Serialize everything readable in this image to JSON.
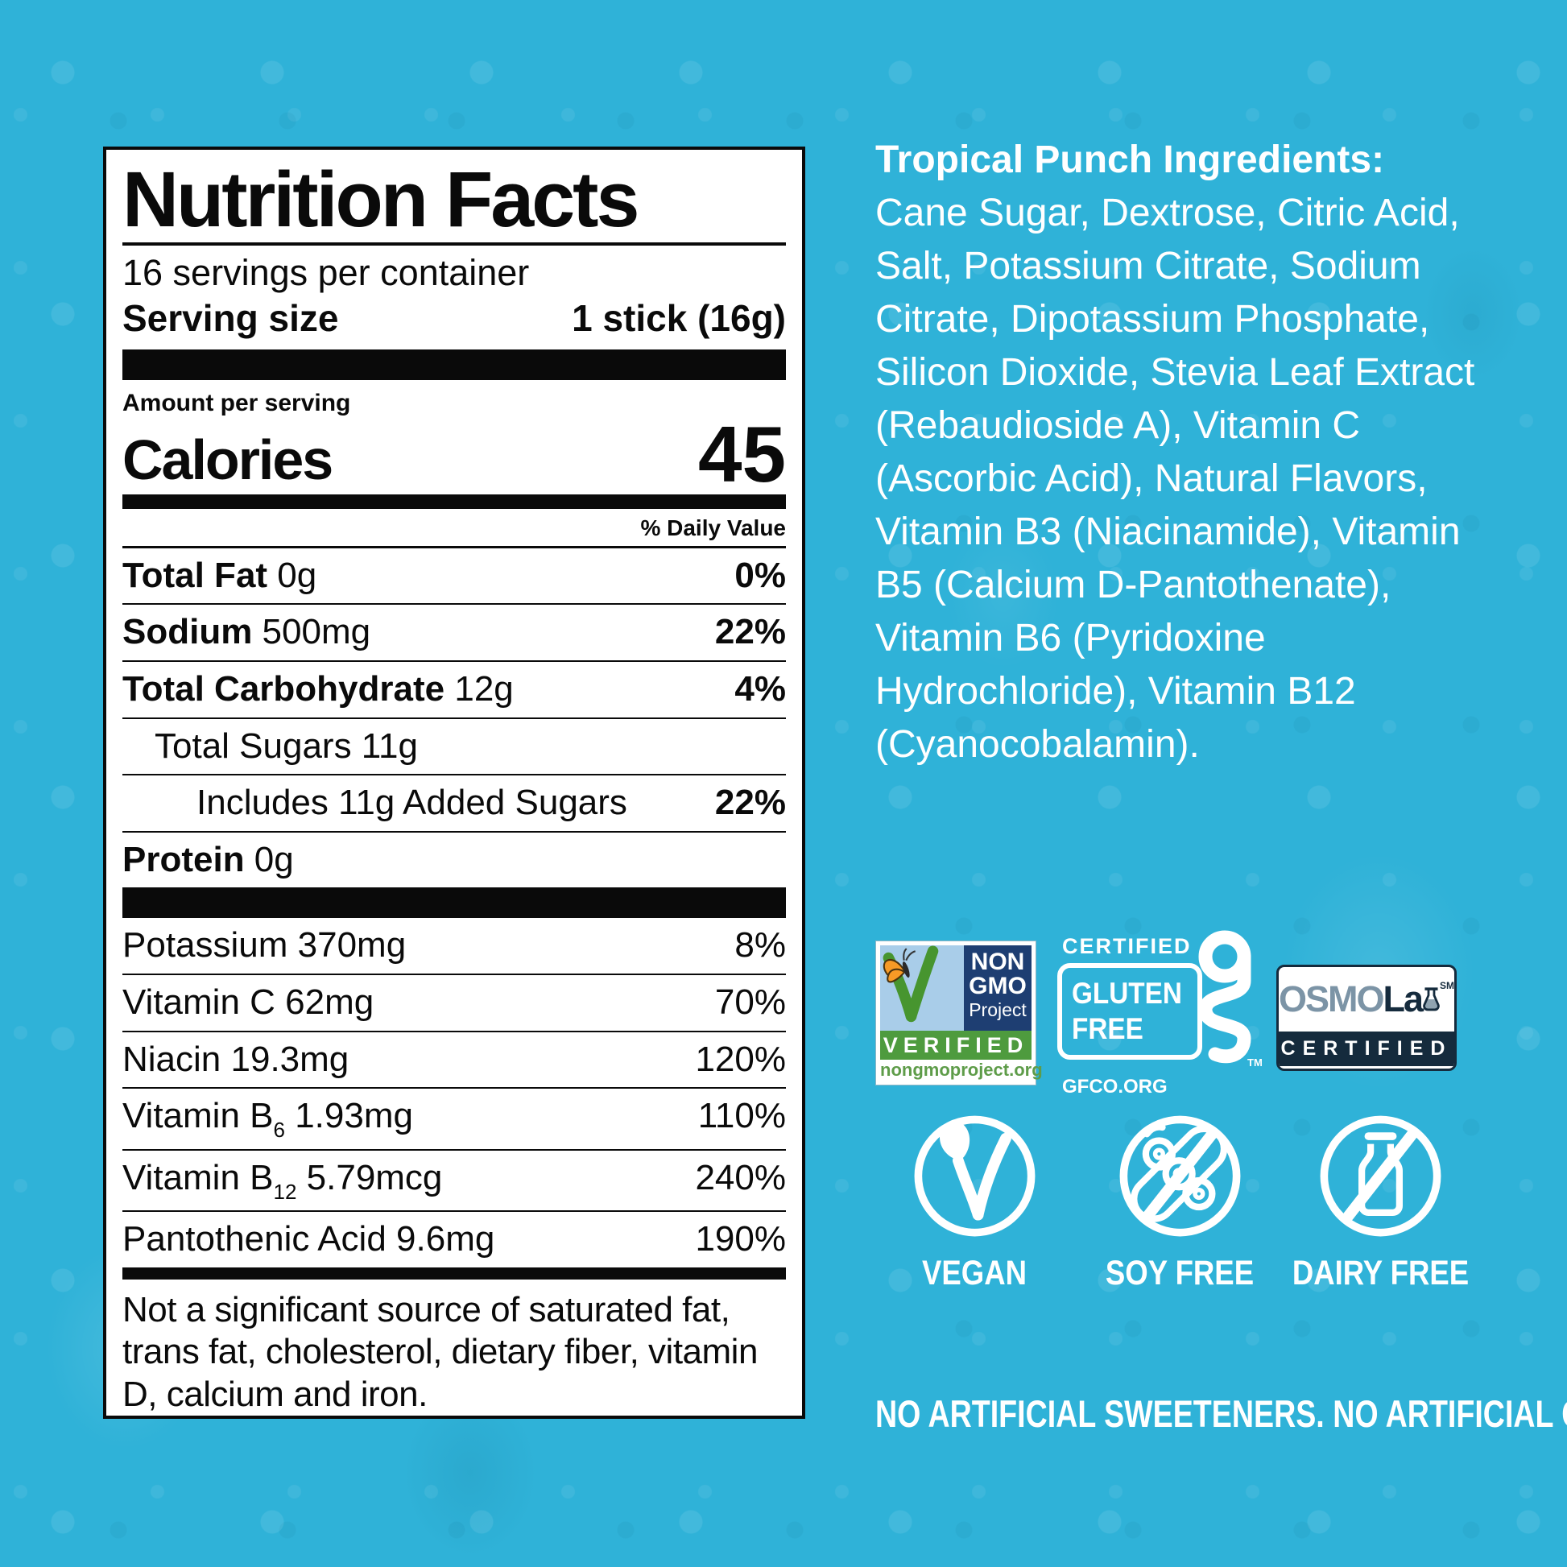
{
  "nutrition_panel": {
    "title": "Nutrition Facts",
    "servings_per_container": "16 servings per container",
    "serving_size_label": "Serving size",
    "serving_size_value": "1 stick (16g)",
    "amount_per_serving": "Amount per serving",
    "calories_label": "Calories",
    "calories_value": "45",
    "daily_value_header": "% Daily Value",
    "main_rows": [
      {
        "label": "Total Fat",
        "amount": "0g",
        "dv": "0%",
        "bold": true,
        "indent": 0
      },
      {
        "label": "Sodium",
        "amount": "500mg",
        "dv": "22%",
        "bold": true,
        "indent": 0
      },
      {
        "label": "Total Carbohydrate",
        "amount": "12g",
        "dv": "4%",
        "bold": true,
        "indent": 0
      },
      {
        "label": "Total Sugars",
        "amount": "11g",
        "dv": "",
        "bold": false,
        "indent": 1
      },
      {
        "label": "Includes 11g Added Sugars",
        "amount": "",
        "dv": "22%",
        "bold": false,
        "indent": 2
      },
      {
        "label": "Protein",
        "amount": "0g",
        "dv": "",
        "bold": true,
        "indent": 0
      }
    ],
    "vitamin_rows": [
      {
        "label": "Potassium",
        "amount": "370mg",
        "dv": "8%"
      },
      {
        "label": "Vitamin C",
        "amount": "62mg",
        "dv": "70%"
      },
      {
        "label": "Niacin",
        "amount": "19.3mg",
        "dv": "120%"
      },
      {
        "label": "Vitamin B",
        "sub": "6",
        "amount": "1.93mg",
        "dv": "110%"
      },
      {
        "label": "Vitamin B",
        "sub": "12",
        "amount": "5.79mcg",
        "dv": "240%"
      },
      {
        "label": "Pantothenic Acid",
        "amount": "9.6mg",
        "dv": "190%"
      }
    ],
    "footnote": "Not a significant source of saturated fat, trans fat, cholesterol, dietary fiber, vitamin D, calcium and iron."
  },
  "ingredients": {
    "title": "Tropical Punch Ingredients:",
    "text": "Cane Sugar, Dextrose, Citric Acid, Salt, Potassium Citrate, Sodium Citrate, Dipotassium Phosphate, Silicon Dioxide, Stevia Leaf Extract (Rebaudioside A), Vitamin C (Ascorbic Acid), Natural Flavors, Vitamin B3 (Niacinamide), Vitamin B5 (Calcium D-Pantothenate), Vitamin B6 (Pyridoxine Hydrochloride), Vitamin B12 (Cyanocobalamin)."
  },
  "badges": {
    "non_gmo": {
      "non": "NON",
      "gmo": "GMO",
      "project": "Project",
      "verified": "VERIFIED",
      "url": "nongmoproject.org"
    },
    "gluten_free": {
      "certified": "CERTIFIED",
      "word1": "GLUTEN",
      "word2": "FREE",
      "tm": "TM",
      "url": "GFCO.ORG"
    },
    "osmolab": {
      "osmo": "OSMO",
      "lab": "La",
      "sm": "SM",
      "certified": "CERTIFIED"
    }
  },
  "diet_icons": [
    {
      "label": "VEGAN",
      "icon": "vegan-leaf-check"
    },
    {
      "label": "SOY FREE",
      "icon": "crossed-soy-pod"
    },
    {
      "label": "DAIRY FREE",
      "icon": "crossed-milk-bottle"
    }
  ],
  "bottom_claim": "NO ARTIFICIAL SWEETENERS. NO ARTIFICIAL COLORS.",
  "colors": {
    "background": "#2FB2D8",
    "panel_bg": "#FFFFFF",
    "ink": "#0A0A0A",
    "white": "#FFFFFF",
    "non_gmo_navy": "#1E3E72",
    "non_gmo_green": "#4E9B3E",
    "non_gmo_sky": "#A9CDE9",
    "butterfly_orange": "#F79A26",
    "osmolab_navy": "#152B3D",
    "osmolab_slate": "#7C94A6"
  }
}
